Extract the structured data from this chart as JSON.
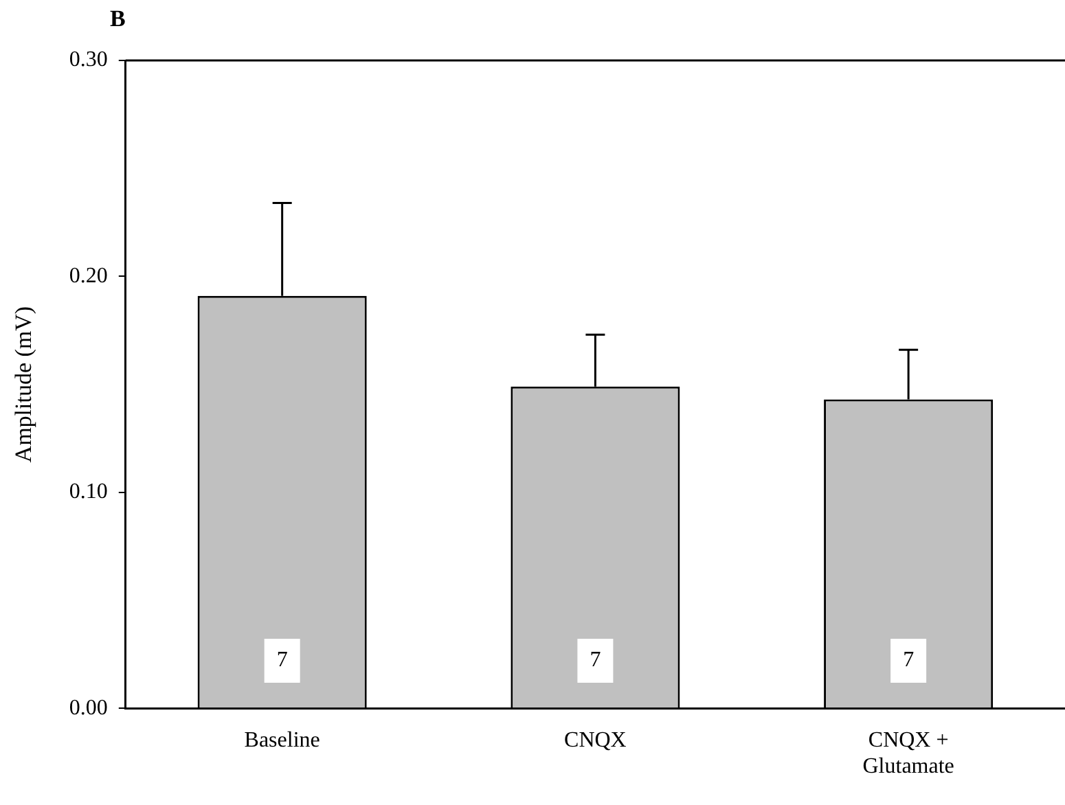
{
  "chart_data": {
    "type": "bar",
    "title": "B",
    "ylabel": "Amplitude (mV)",
    "categories": [
      "Baseline",
      "CNQX",
      "CNQX + Glutamate"
    ],
    "values": [
      0.191,
      0.149,
      0.143
    ],
    "color": "#c0c0c0",
    "errors": [
      [
        0.191,
        0.234
      ],
      [
        0.149,
        0.173
      ],
      [
        0.143,
        0.166
      ]
    ],
    "ylim": [
      0,
      0.3
    ],
    "yticks": [
      {
        "value": 0,
        "label": "0.00"
      },
      {
        "value": 0.1,
        "label": "0.10"
      },
      {
        "value": 0.2,
        "label": "0.20"
      },
      {
        "value": 0.3,
        "label": "0.30"
      }
    ],
    "grid": false,
    "legend": false,
    "annotations": [
      {
        "text": "7",
        "x": "Baseline",
        "y": 0.022
      },
      {
        "text": "7",
        "x": "CNQX",
        "y": 0.022
      },
      {
        "text": "7",
        "x": "CNQX + Glutamate",
        "y": 0.022
      }
    ]
  }
}
